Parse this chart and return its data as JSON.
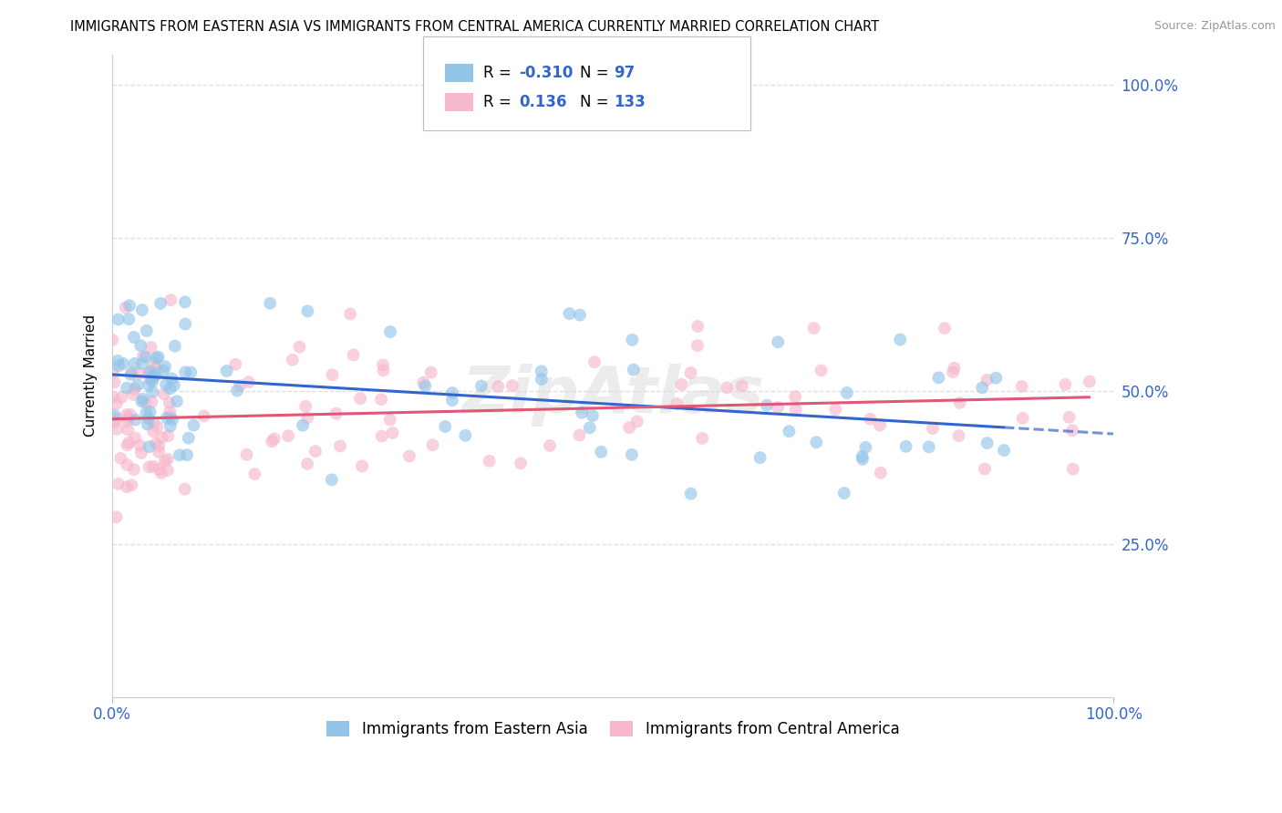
{
  "title": "IMMIGRANTS FROM EASTERN ASIA VS IMMIGRANTS FROM CENTRAL AMERICA CURRENTLY MARRIED CORRELATION CHART",
  "source": "Source: ZipAtlas.com",
  "ylabel": "Currently Married",
  "watermark": "ZipAtlas",
  "blue_label": "Immigrants from Eastern Asia",
  "pink_label": "Immigrants from Central America",
  "blue_R": -0.31,
  "blue_N": 97,
  "pink_R": 0.136,
  "pink_N": 133,
  "blue_color": "#92C5E8",
  "pink_color": "#F7B8CC",
  "blue_trend_color": "#3366CC",
  "pink_trend_color": "#E05878",
  "background_color": "#FFFFFF",
  "axis_color": "#3366CC",
  "grid_color": "#DDDDDD",
  "watermark_color": "#DDDDDD",
  "title_fontsize": 10.5,
  "source_fontsize": 9,
  "tick_fontsize": 12,
  "ylabel_fontsize": 11,
  "legend_fontsize": 12,
  "scatter_size": 100,
  "scatter_alpha": 0.65,
  "trend_linewidth": 2.2,
  "yticks": [
    0.25,
    0.5,
    0.75,
    1.0
  ],
  "ytick_labels": [
    "25.0%",
    "50.0%",
    "75.0%",
    "100.0%"
  ],
  "ylim": [
    0.0,
    1.05
  ],
  "xlim": [
    0,
    100
  ]
}
